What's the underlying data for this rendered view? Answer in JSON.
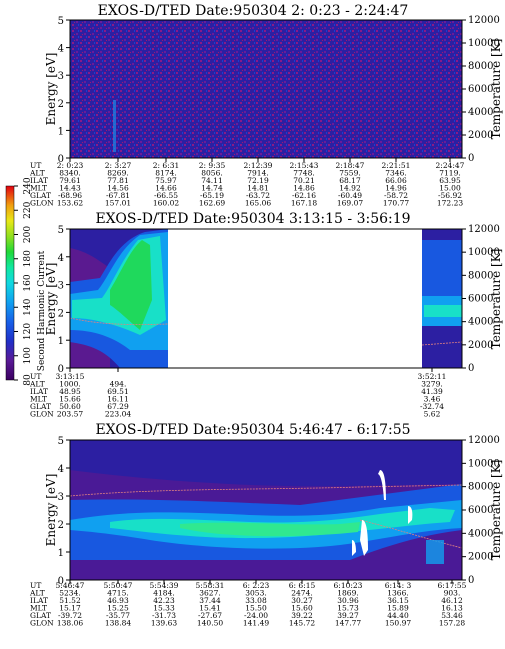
{
  "colors": {
    "bg": "#2a1f9e",
    "colorbar": [
      "#3a0060",
      "#5a1a96",
      "#2030c8",
      "#1860e8",
      "#10a0f0",
      "#10d8e0",
      "#10e8a0",
      "#20d838",
      "#90e020",
      "#e8e818",
      "#f0a010",
      "#e84010",
      "#e00010"
    ]
  },
  "colorbar": {
    "label": "Second Harmonic Current",
    "ticks": [
      "80",
      "100",
      "120",
      "140",
      "160",
      "180",
      "200",
      "220",
      "240"
    ]
  },
  "chart_data": [
    {
      "type": "heatmap",
      "title": "EXOS-D/TED   Date:950304   2: 0:23 - 2:24:47",
      "ylabel": "Energy [eV]",
      "y2label": "Temperature [K]",
      "ylim": [
        0,
        5
      ],
      "y2lim": [
        0,
        12000
      ],
      "yticks": [
        "0",
        "1",
        "2",
        "3",
        "4",
        "5"
      ],
      "y2ticks": [
        "0",
        "2000",
        "4000",
        "6000",
        "8000",
        "10000",
        "12000"
      ],
      "table": {
        "labels": [
          "UT",
          "ALT",
          "ILAT",
          "MLT",
          "GLAT",
          "GLON"
        ],
        "columns": [
          [
            "2: 0:23",
            "8340.",
            "79.61",
            "14.43",
            "-68.96",
            "153.62"
          ],
          [
            "2: 3:27",
            "8269.",
            "77.81",
            "14.56",
            "-67.81",
            "157.01"
          ],
          [
            "2: 6:31",
            "8174.",
            "75.97",
            "14.66",
            "-66.55",
            "160.02"
          ],
          [
            "2: 9:35",
            "8056.",
            "74.11",
            "14.74",
            "-65.19",
            "162.69"
          ],
          [
            "2:12:39",
            "7914.",
            "72.19",
            "14.81",
            "-63.72",
            "165.06"
          ],
          [
            "2:15:43",
            "7748.",
            "70.21",
            "14.86",
            "-62.16",
            "167.18"
          ],
          [
            "2:18:47",
            "7559.",
            "68.17",
            "14.92",
            "-60.49",
            "169.07"
          ],
          [
            "2:21:51",
            "7346.",
            "66.06",
            "14.96",
            "-58.72",
            "170.77"
          ],
          [
            "2:24:47",
            "7119.",
            "63.95",
            "15.00",
            "-56.92",
            "172.23"
          ]
        ]
      }
    },
    {
      "type": "heatmap",
      "title": "EXOS-D/TED   Date:950304   3:13:15 - 3:56:19",
      "ylabel": "Energy [eV]",
      "y2label": "Temperature [K]",
      "ylim": [
        0,
        5
      ],
      "y2lim": [
        0,
        12000
      ],
      "yticks": [
        "0",
        "1",
        "2",
        "3",
        "4",
        "5"
      ],
      "y2ticks": [
        "0",
        "2000",
        "4000",
        "6000",
        "8000",
        "10000",
        "12000"
      ],
      "table": {
        "labels": [
          "UT",
          "ALT",
          "ILAT",
          "MLT",
          "GLAT",
          "GLON"
        ],
        "columns": [
          [
            "3:13:15",
            "1000.",
            "48.95",
            "15.66",
            "50.60",
            "203.57"
          ],
          [
            "",
            "494.",
            "69.51",
            "16.11",
            "67.29",
            "223.04"
          ],
          [
            "3:52:11",
            "3279.",
            "41.39",
            "3.46",
            "-32.74",
            "5.62"
          ]
        ]
      }
    },
    {
      "type": "heatmap",
      "title": "EXOS-D/TED   Date:950304   5:46:47 - 6:17:55",
      "ylabel": "Energy [eV]",
      "y2label": "Temperature [K]",
      "ylim": [
        0,
        5
      ],
      "y2lim": [
        0,
        12000
      ],
      "yticks": [
        "0",
        "1",
        "2",
        "3",
        "4",
        "5"
      ],
      "y2ticks": [
        "0",
        "2000",
        "4000",
        "6000",
        "8000",
        "10000",
        "12000"
      ],
      "table": {
        "labels": [
          "UT",
          "ALT",
          "ILAT",
          "MLT",
          "GLAT",
          "GLON"
        ],
        "columns": [
          [
            "5:46:47",
            "5234.",
            "51.52",
            "15.17",
            "-39.72",
            "138.06"
          ],
          [
            "5:50:47",
            "4715.",
            "46.93",
            "15.25",
            "-35.77",
            "138.84"
          ],
          [
            "5:54:39",
            "4184.",
            "42.23",
            "15.33",
            "-31.73",
            "139.63"
          ],
          [
            "5:58:31",
            "3627.",
            "37.44",
            "15.41",
            "-27.67",
            "140.50"
          ],
          [
            "6: 2:23",
            "3053.",
            "33.08",
            "15.50",
            "-24.00",
            "141.49"
          ],
          [
            "6: 6:15",
            "2474.",
            "30.27",
            "15.60",
            "39.22",
            "145.72"
          ],
          [
            "6:10:23",
            "1869.",
            "30.96",
            "15.73",
            "39.27",
            "147.77"
          ],
          [
            "6:14: 3",
            "1366.",
            "36.15",
            "15.89",
            "44.40",
            "150.97"
          ],
          [
            "6:17:55",
            "903.",
            "46.12",
            "16.13",
            "53.46",
            "157.28"
          ]
        ]
      }
    }
  ]
}
